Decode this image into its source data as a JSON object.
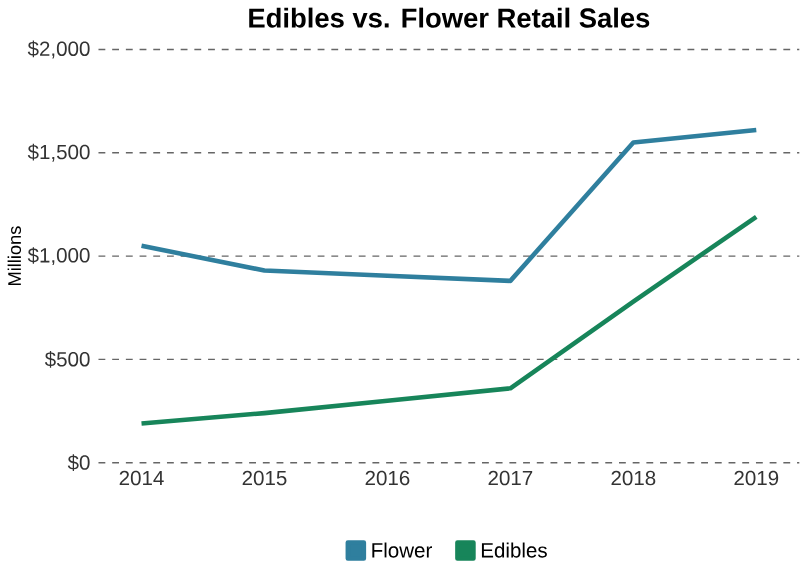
{
  "chart_data": {
    "type": "line",
    "title": "Edibles vs. Flower Retail Sales",
    "ylabel": "Millions",
    "categories": [
      "2014",
      "2015",
      "2016",
      "2017",
      "2018",
      "2019"
    ],
    "series": [
      {
        "name": "Flower",
        "color": "#2f7f9e",
        "values": [
          1050,
          930,
          905,
          880,
          1550,
          1610
        ]
      },
      {
        "name": "Edibles",
        "color": "#17855a",
        "values": [
          190,
          240,
          300,
          360,
          780,
          1190
        ]
      }
    ],
    "ylim": [
      0,
      2000
    ],
    "yticks": [
      {
        "value": 0,
        "label": "$0"
      },
      {
        "value": 500,
        "label": "$500"
      },
      {
        "value": 1000,
        "label": "$1,000"
      },
      {
        "value": 1500,
        "label": "$1,500"
      },
      {
        "value": 2000,
        "label": "$2,000"
      }
    ],
    "grid": "y",
    "legend": "bottom",
    "marker": "none",
    "line_style": "solid"
  }
}
